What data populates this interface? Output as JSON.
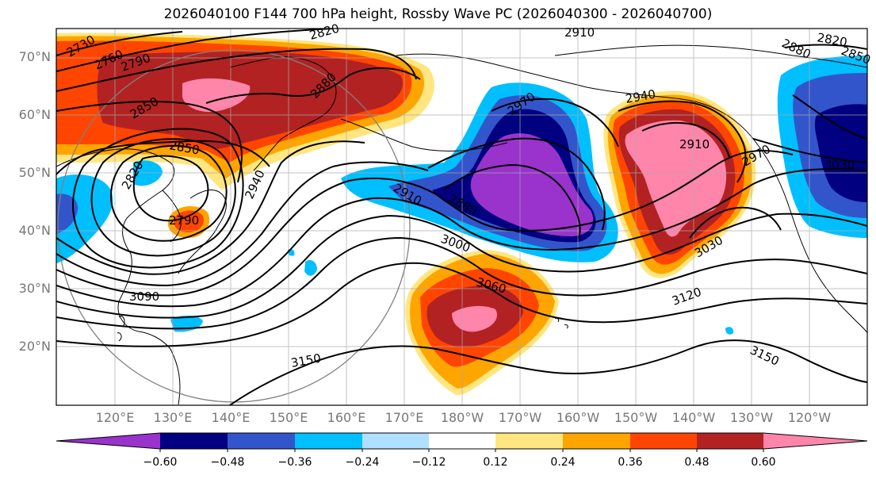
{
  "title": "2026040100 F144 700 hPa height, Rossby Wave PC (2026040300 - 2026040700)",
  "map": {
    "variable": "700 hPa height",
    "shaded_field": "Rossby Wave PC",
    "lat_labels": [
      "70°N",
      "60°N",
      "50°N",
      "40°N",
      "30°N",
      "20°N"
    ],
    "lon_labels": [
      "120°E",
      "130°E",
      "140°E",
      "150°E",
      "160°E",
      "170°E",
      "180°W",
      "170°W",
      "160°W",
      "150°W",
      "140°W",
      "130°W",
      "120°W"
    ],
    "contour_labels": [
      "2730",
      "2760",
      "2790",
      "2850",
      "2880",
      "2820",
      "2850",
      "2790",
      "2940",
      "2910",
      "2880",
      "3000",
      "3060",
      "3090",
      "3150",
      "2910",
      "2970",
      "2940",
      "2910",
      "2970",
      "3030",
      "3030",
      "3120",
      "3150",
      "2880",
      "2820",
      "2850",
      "2820"
    ]
  },
  "colorbar": {
    "ticks": [
      "−0.60",
      "−0.48",
      "−0.36",
      "−0.24",
      "−0.12",
      "0.12",
      "0.24",
      "0.36",
      "0.48",
      "0.60"
    ],
    "colors": [
      "#9933cc",
      "#000080",
      "#3355cc",
      "#00bfff",
      "#b0e0ff",
      "#ffffff",
      "#ffe680",
      "#ffa500",
      "#ff4500",
      "#b22222",
      "#ff85aa"
    ]
  }
}
